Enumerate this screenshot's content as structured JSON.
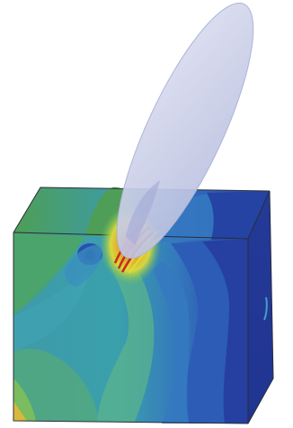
{
  "figure": {
    "colors": {
      "background": "#ffffff",
      "contour_low": "#1f3c9a",
      "contour_low_mid": "#2f6fbf",
      "contour_mid": "#3a9fb0",
      "contour_mid_high": "#52b466",
      "contour_high": "#d7d63a",
      "contour_peak": "#d83a24",
      "disc_fill": "#c9cde6",
      "edge_line": "#2c2c3a"
    },
    "objects": [
      "contour-block",
      "cutting-disc"
    ]
  }
}
